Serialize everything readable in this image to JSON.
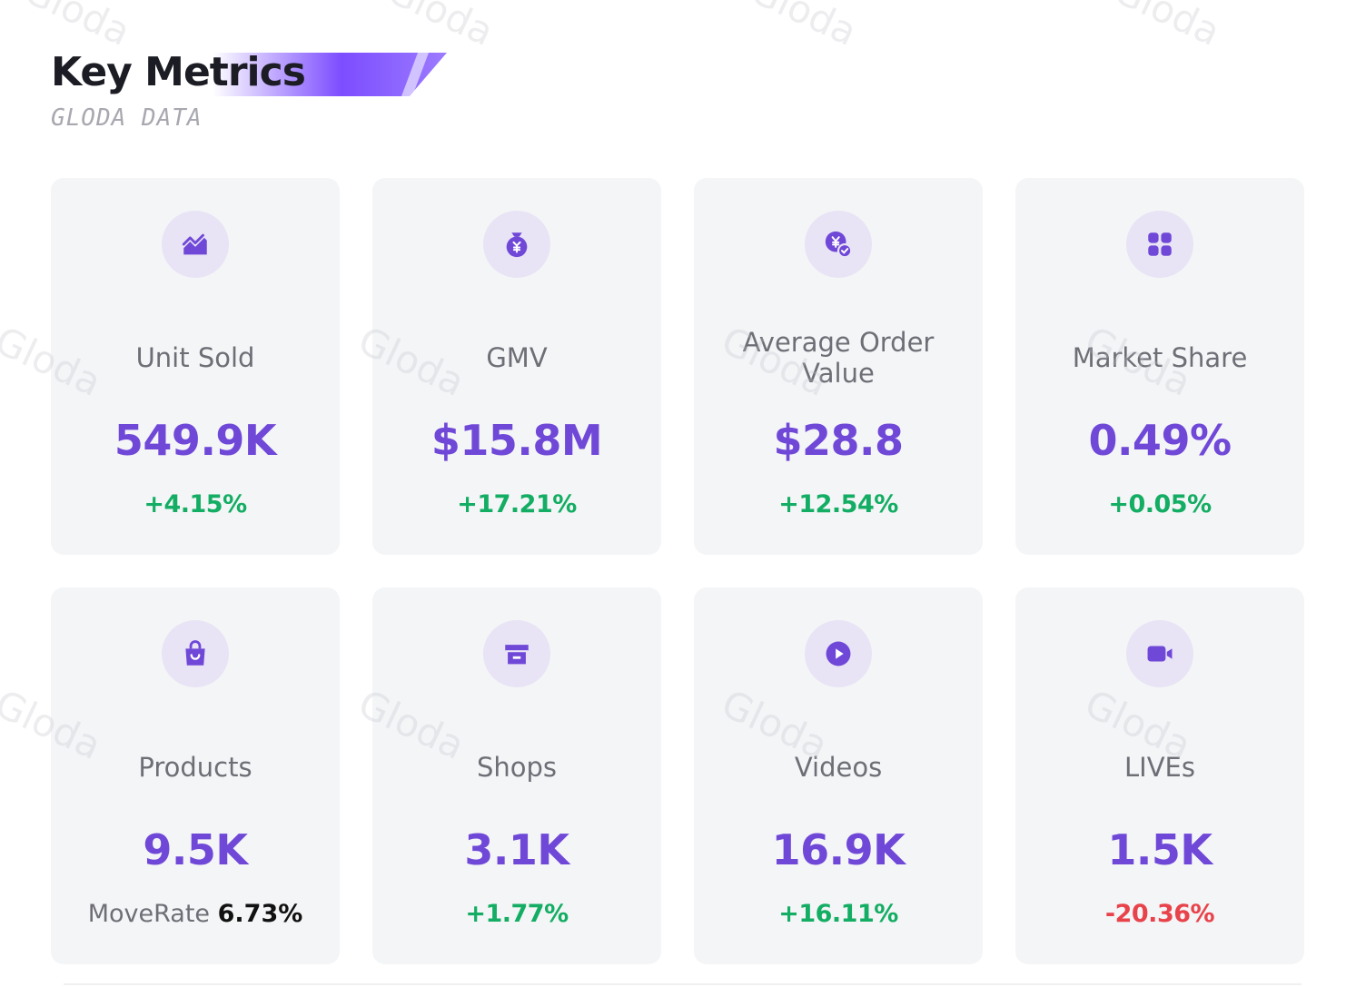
{
  "header": {
    "title": "Key Metrics",
    "subtitle": "GLODA DATA"
  },
  "watermark": "Gloda",
  "colors": {
    "accent": "#7048d8",
    "positive": "#13ad63",
    "negative": "#e8434a",
    "card_bg": "#f4f5f7",
    "icon_bg": "#e8e4f5"
  },
  "metrics": [
    {
      "label": "Unit Sold",
      "value": "549.9K",
      "change": "+4.15%",
      "trend": "up",
      "icon": "trend-chart-icon"
    },
    {
      "label": "GMV",
      "value": "$15.8M",
      "change": "+17.21%",
      "trend": "up",
      "icon": "money-bag-icon"
    },
    {
      "label": "Average Order Value",
      "value": "$28.8",
      "change": "+12.54%",
      "trend": "up",
      "icon": "yen-check-icon"
    },
    {
      "label": "Market Share",
      "value": "0.49%",
      "change": "+0.05%",
      "trend": "up",
      "icon": "grid-icon"
    },
    {
      "label": "Products",
      "value": "9.5K",
      "change_label": "MoveRate",
      "change": "6.73%",
      "trend": "neutral",
      "icon": "shopping-bag-icon"
    },
    {
      "label": "Shops",
      "value": "3.1K",
      "change": "+1.77%",
      "trend": "up",
      "icon": "store-icon"
    },
    {
      "label": "Videos",
      "value": "16.9K",
      "change": "+16.11%",
      "trend": "up",
      "icon": "play-icon"
    },
    {
      "label": "LIVEs",
      "value": "1.5K",
      "change": "-20.36%",
      "trend": "down",
      "icon": "video-camera-icon"
    }
  ]
}
